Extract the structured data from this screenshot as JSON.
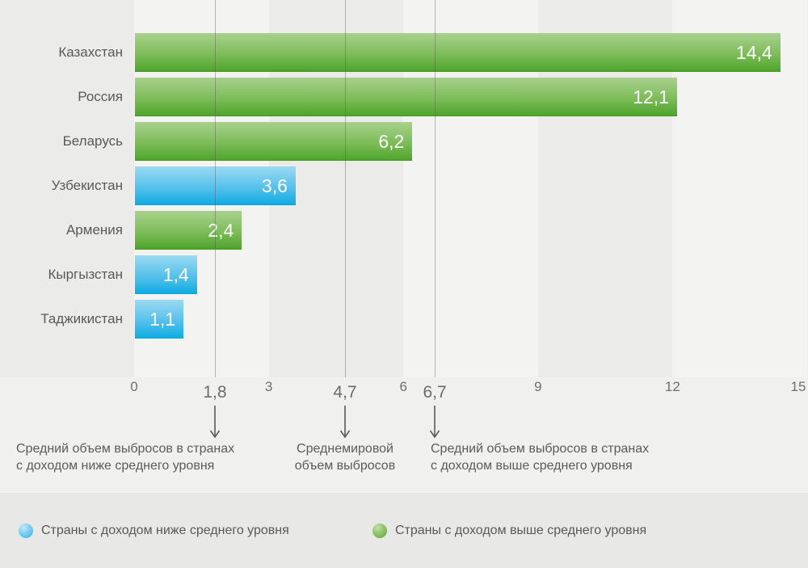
{
  "chart_data": {
    "type": "bar",
    "orientation": "horizontal",
    "categories": [
      "Казахстан",
      "Россия",
      "Беларусь",
      "Узбекистан",
      "Армения",
      "Кыргызстан",
      "Таджикистан"
    ],
    "values": [
      14.4,
      12.1,
      6.2,
      3.6,
      2.4,
      1.4,
      1.1
    ],
    "value_labels": [
      "14,4",
      "12,1",
      "6,2",
      "3,6",
      "2,4",
      "1,4",
      "1,1"
    ],
    "series_group": [
      "above_average",
      "above_average",
      "above_average",
      "below_average",
      "above_average",
      "below_average",
      "below_average"
    ],
    "xlim": [
      0,
      15
    ],
    "x_ticks": [
      {
        "value": 0,
        "label": "0"
      },
      {
        "value": 3,
        "label": "3"
      },
      {
        "value": 6,
        "label": "6"
      },
      {
        "value": 9,
        "label": "9"
      },
      {
        "value": 12,
        "label": "12"
      },
      {
        "value": 15,
        "label": "15"
      }
    ],
    "reference_lines": [
      {
        "value": 1.8,
        "label": "1,8",
        "text_lines": [
          "Средний объем выбросов в странах",
          "с доходом ниже среднего уровня"
        ]
      },
      {
        "value": 4.7,
        "label": "4,7",
        "text_lines": [
          "Среднемировой",
          "объем выбросов"
        ]
      },
      {
        "value": 6.7,
        "label": "6,7",
        "text_lines": [
          "Средний объем выбросов в странах",
          "с доходом выше среднего уровня"
        ]
      }
    ],
    "legend": [
      {
        "label": "Страны с доходом ниже среднего уровня",
        "group": "below_average",
        "color": "#2eb2e5"
      },
      {
        "label": "Страны с доходом выше среднего уровня",
        "group": "above_average",
        "color": "#5fa637"
      }
    ],
    "legend_position": "bottom",
    "grid": "alternating vertical bands every 3 units; reference gridlines at 1.8, 4.7 and 6.7"
  },
  "colors": {
    "bar_green_top": "#a9d18d",
    "bar_green_bottom": "#51a52e",
    "bar_blue_top": "#9bdaf2",
    "bar_blue_bottom": "#12ade2",
    "band_light": "#f3f3f2",
    "band_dark": "#ebebea",
    "page_bg": "#f0f0ef",
    "legend_bg": "#e8e8e6",
    "label_text": "#58595b",
    "axis_text": "#6e6f71",
    "value_text": "#ffffff"
  }
}
